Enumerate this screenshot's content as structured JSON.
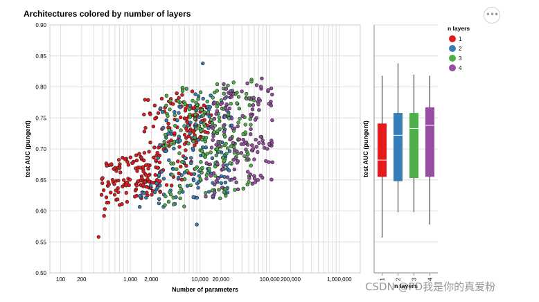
{
  "menu": {
    "icon": "ellipsis-icon",
    "label": "•••"
  },
  "watermark": "CSDN @PD我是你的真爱粉",
  "colors": {
    "1": "#e41a1c",
    "2": "#377eb8",
    "3": "#4daf4a",
    "4": "#984ea3"
  },
  "chart_data": [
    {
      "type": "scatter",
      "title": "Architectures colored by number of layers",
      "xlabel": "Number of parameters",
      "ylabel": "test AUC (pungent)",
      "xscale": "log",
      "xlim": [
        70,
        2000000
      ],
      "ylim": [
        0.5,
        0.9
      ],
      "x_ticks": [
        100,
        200,
        1000,
        2000,
        10000,
        20000,
        100000,
        200000,
        1000000
      ],
      "x_tick_labels": [
        "100",
        "200",
        "1,000",
        "2,000",
        "10,000",
        "20,000",
        "100,000",
        "200,000",
        "1,000,000"
      ],
      "y_ticks": [
        0.5,
        0.55,
        0.6,
        0.65,
        0.7,
        0.75,
        0.8,
        0.85,
        0.9
      ],
      "y_tick_labels": [
        "0.50",
        "0.55",
        "0.60",
        "0.65",
        "0.70",
        "0.75",
        "0.80",
        "0.85",
        "0.90"
      ],
      "grid": true,
      "series": [
        {
          "name": "1",
          "clusters": [
            {
              "x_range": [
                380,
                2800
              ],
              "y_range": [
                0.6,
                0.7
              ],
              "n": 120
            },
            {
              "x_range": [
                1500,
                9000
              ],
              "y_range": [
                0.62,
                0.8
              ],
              "n": 110
            },
            {
              "x_range": [
                6000,
                15000
              ],
              "y_range": [
                0.7,
                0.78
              ],
              "n": 40
            }
          ],
          "extra_points": [
            [
              350,
              0.558
            ],
            [
              420,
              0.592
            ],
            [
              430,
              0.603
            ]
          ]
        },
        {
          "name": "2",
          "clusters": [
            {
              "x_range": [
                2500,
                30000
              ],
              "y_range": [
                0.6,
                0.8
              ],
              "n": 140
            },
            {
              "x_range": [
                1200,
                2500
              ],
              "y_range": [
                0.6,
                0.65
              ],
              "n": 12
            }
          ],
          "extra_points": [
            [
              11000,
              0.838
            ],
            [
              9000,
              0.578
            ]
          ]
        },
        {
          "name": "3",
          "clusters": [
            {
              "x_range": [
                3000,
                60000
              ],
              "y_range": [
                0.6,
                0.82
              ],
              "n": 160
            },
            {
              "x_range": [
                8000,
                40000
              ],
              "y_range": [
                0.66,
                0.8
              ],
              "n": 50
            }
          ],
          "extra_points": []
        },
        {
          "name": "4",
          "clusters": [
            {
              "x_range": [
                12000,
                110000
              ],
              "y_range": [
                0.62,
                0.82
              ],
              "n": 140
            }
          ],
          "extra_points": [
            [
              105000,
              0.77
            ],
            [
              95000,
              0.795
            ]
          ]
        }
      ]
    },
    {
      "type": "box",
      "xlabel": "n layers",
      "ylabel": "test AUC (pungent)",
      "ylim": [
        0.5,
        0.9
      ],
      "categories": [
        "1",
        "2",
        "3",
        "4"
      ],
      "boxes": [
        {
          "name": "1",
          "min": 0.557,
          "q1": 0.655,
          "median": 0.682,
          "q3": 0.741,
          "max": 0.818
        },
        {
          "name": "2",
          "min": 0.598,
          "q1": 0.648,
          "median": 0.722,
          "q3": 0.758,
          "max": 0.838
        },
        {
          "name": "3",
          "min": 0.598,
          "q1": 0.653,
          "median": 0.733,
          "q3": 0.758,
          "max": 0.82
        },
        {
          "name": "4",
          "min": 0.578,
          "q1": 0.655,
          "median": 0.738,
          "q3": 0.767,
          "max": 0.818
        }
      ]
    }
  ],
  "legend": {
    "title": "n layers",
    "position": "top-right",
    "items": [
      {
        "label": "1",
        "color": "#e41a1c"
      },
      {
        "label": "2",
        "color": "#377eb8"
      },
      {
        "label": "3",
        "color": "#4daf4a"
      },
      {
        "label": "4",
        "color": "#984ea3"
      }
    ]
  }
}
